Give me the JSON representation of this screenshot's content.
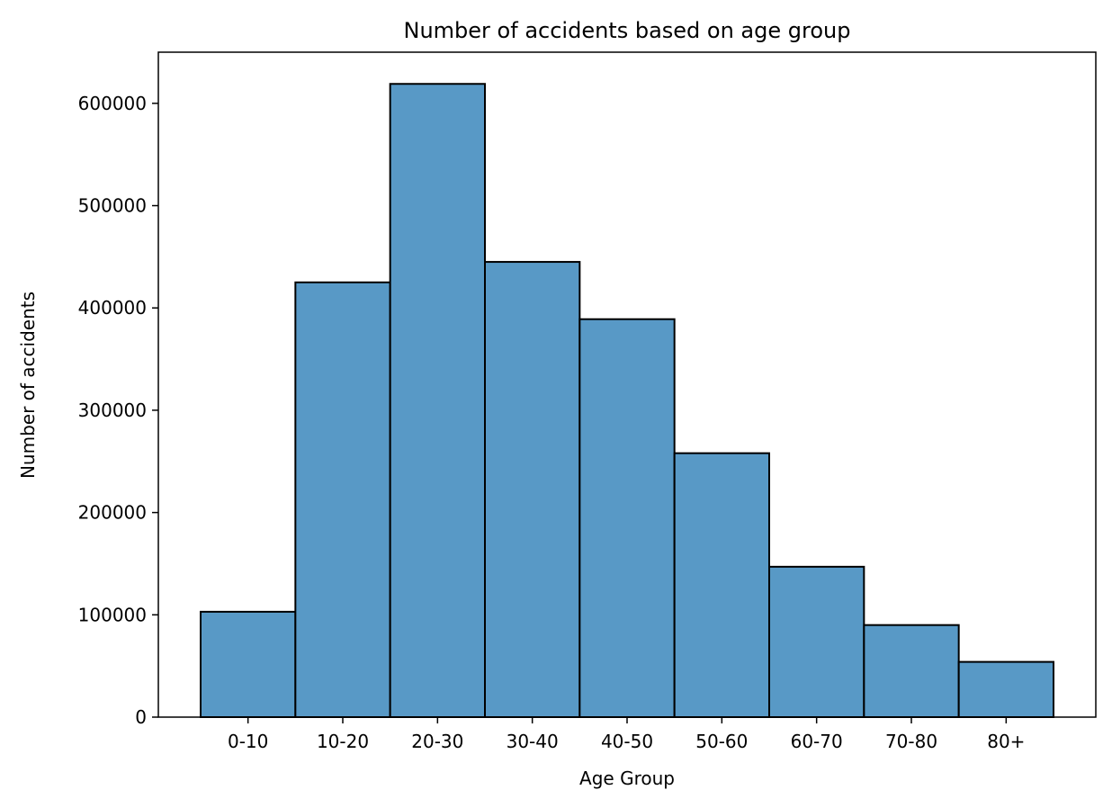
{
  "chart_data": {
    "type": "bar",
    "title": "Number of accidents based on age group",
    "xlabel": "Age Group",
    "ylabel": "Number of accidents",
    "categories": [
      "0-10",
      "10-20",
      "20-30",
      "30-40",
      "40-50",
      "50-60",
      "60-70",
      "70-80",
      "80+"
    ],
    "values": [
      103000,
      425000,
      619000,
      445000,
      389000,
      258000,
      147000,
      90000,
      54000
    ],
    "ylim": [
      0,
      650000
    ],
    "yticks": [
      0,
      100000,
      200000,
      300000,
      400000,
      500000,
      600000
    ],
    "ytick_labels": [
      "0",
      "100000",
      "200000",
      "300000",
      "400000",
      "500000",
      "600000"
    ],
    "grid": false,
    "bar_color": "#5899c6",
    "edge_color": "#000000"
  }
}
